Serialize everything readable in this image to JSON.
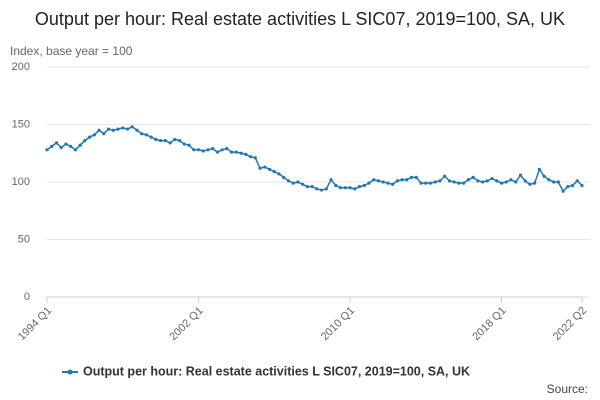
{
  "chart_data": {
    "type": "line",
    "title": "Output per hour: Real estate activities L SIC07, 2019=100, SA, UK",
    "y_label": "Index, base year = 100",
    "source": "Source:",
    "categories": [
      "1994 Q1",
      null,
      null,
      null,
      null,
      null,
      null,
      null,
      null,
      null,
      null,
      null,
      null,
      null,
      null,
      null,
      null,
      null,
      null,
      null,
      null,
      null,
      null,
      null,
      null,
      null,
      null,
      null,
      null,
      null,
      null,
      null,
      "2002 Q1",
      null,
      null,
      null,
      null,
      null,
      null,
      null,
      null,
      null,
      null,
      null,
      null,
      null,
      null,
      null,
      null,
      null,
      null,
      null,
      null,
      null,
      null,
      null,
      null,
      null,
      null,
      null,
      null,
      null,
      null,
      null,
      "2010 Q1",
      null,
      null,
      null,
      null,
      null,
      null,
      null,
      null,
      null,
      null,
      null,
      null,
      null,
      null,
      null,
      null,
      null,
      null,
      null,
      null,
      null,
      null,
      null,
      null,
      null,
      null,
      null,
      null,
      null,
      null,
      null,
      "2018 Q1",
      null,
      null,
      null,
      null,
      null,
      null,
      null,
      null,
      null,
      null,
      null,
      null,
      null,
      null,
      null,
      null,
      "2022 Q2"
    ],
    "series": [
      {
        "name": "Output per hour: Real estate activities L SIC07, 2019=100, SA, UK",
        "color": "#1f78b4",
        "values": [
          128,
          131,
          134,
          130,
          133,
          131,
          128,
          132,
          136,
          139,
          141,
          145,
          142,
          146,
          145,
          146,
          147,
          146,
          148,
          145,
          142,
          141,
          139,
          137,
          136,
          136,
          134,
          137,
          136,
          133,
          132,
          128,
          128,
          127,
          128,
          129,
          126,
          128,
          129,
          126,
          126,
          125,
          124,
          122,
          121,
          112,
          113,
          111,
          109,
          107,
          104,
          101,
          99,
          100,
          98,
          96,
          96,
          94,
          93,
          94,
          102,
          97,
          95,
          95,
          95,
          94,
          96,
          97,
          99,
          102,
          101,
          100,
          99,
          98,
          101,
          102,
          102,
          104,
          104,
          99,
          99,
          99,
          100,
          101,
          105,
          101,
          100,
          99,
          99,
          102,
          104,
          101,
          100,
          101,
          103,
          101,
          99,
          100,
          102,
          100,
          106,
          101,
          98,
          99,
          111,
          105,
          102,
          100,
          100,
          92,
          96,
          97,
          101,
          97
        ]
      }
    ],
    "ylim": [
      0,
      200
    ],
    "yticks": [
      0,
      50,
      100,
      150,
      200
    ],
    "grid": true
  }
}
